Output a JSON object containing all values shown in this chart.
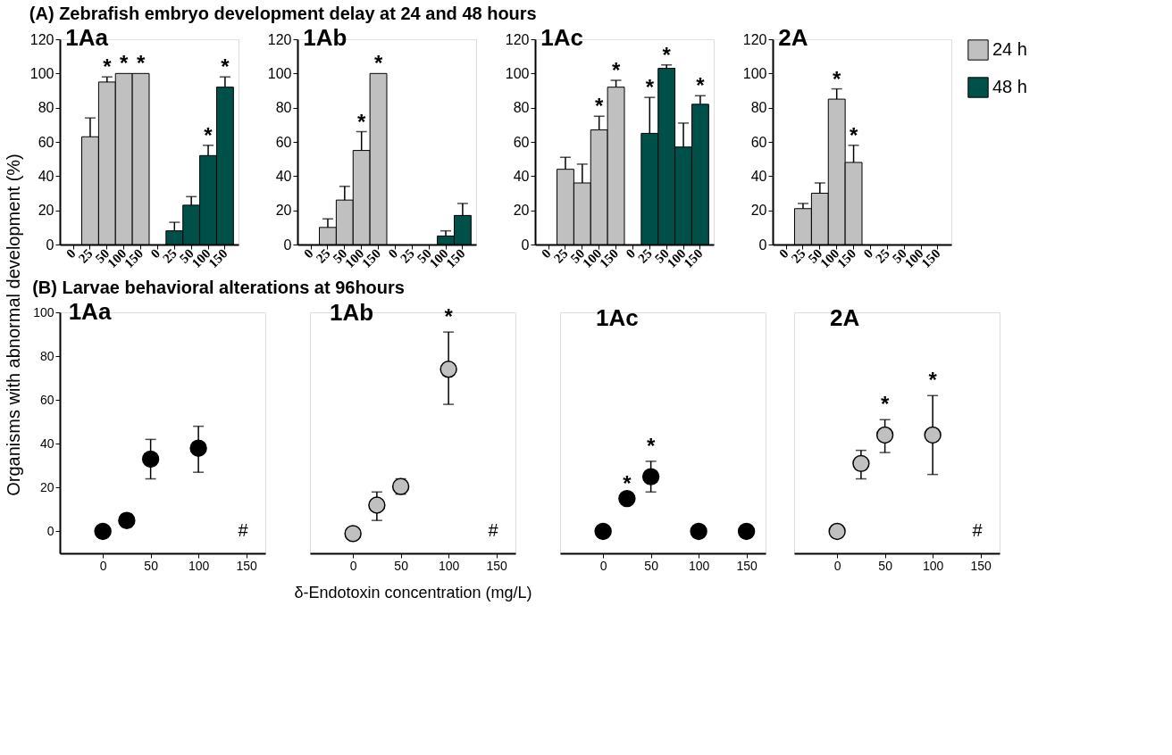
{
  "chart_data": [
    {
      "type": "bar",
      "title": "1Aa",
      "subtitle": "(A) Zebrafish embryo development delay at 24 and 48 hours",
      "ylabel": "Organisms with abnormal development (%)",
      "categories": [
        "0",
        "25",
        "50",
        "100",
        "150",
        "0",
        "25",
        "50",
        "100",
        "150"
      ],
      "ylim": [
        0,
        120
      ],
      "yticks": [
        0,
        20,
        40,
        60,
        80,
        100,
        120
      ],
      "grid": false,
      "legend": false,
      "series": [
        {
          "color": "#c0c0c0",
          "values": [
            0,
            63,
            95,
            100,
            100,
            null,
            null,
            null,
            null,
            null
          ],
          "errors": [
            null,
            [
              63,
              74
            ],
            [
              95,
              98
            ],
            null,
            null,
            null,
            null,
            null,
            null,
            null
          ],
          "value_labels": [
            null,
            null,
            "*",
            "*",
            "*",
            null,
            null,
            null,
            null,
            null
          ]
        },
        {
          "color": "#00504a",
          "values": [
            null,
            null,
            null,
            null,
            null,
            0,
            8,
            23,
            52,
            92
          ],
          "errors": [
            null,
            null,
            null,
            null,
            null,
            null,
            [
              8,
              13
            ],
            [
              23,
              28
            ],
            [
              52,
              58
            ],
            [
              92,
              98
            ]
          ],
          "value_labels": [
            null,
            null,
            null,
            null,
            null,
            null,
            null,
            null,
            "*",
            "*"
          ]
        }
      ]
    },
    {
      "type": "bar",
      "title": "1Ab",
      "categories": [
        "0",
        "25",
        "50",
        "100",
        "150",
        "0",
        "25",
        "50",
        "100",
        "150"
      ],
      "ylim": [
        0,
        120
      ],
      "yticks": [
        0,
        20,
        40,
        60,
        80,
        100,
        120
      ],
      "grid": false,
      "legend": false,
      "series": [
        {
          "color": "#c0c0c0",
          "values": [
            0,
            10,
            26,
            55,
            100,
            null,
            null,
            null,
            null,
            null
          ],
          "errors": [
            null,
            [
              10,
              15
            ],
            [
              26,
              34
            ],
            [
              55,
              66
            ],
            null,
            null,
            null,
            null,
            null,
            null
          ],
          "value_labels": [
            null,
            null,
            null,
            "*",
            "*",
            null,
            null,
            null,
            null,
            null
          ]
        },
        {
          "color": "#00504a",
          "values": [
            null,
            null,
            null,
            null,
            null,
            0,
            0,
            0,
            5,
            17
          ],
          "errors": [
            null,
            null,
            null,
            null,
            null,
            null,
            null,
            null,
            [
              5,
              8
            ],
            [
              17,
              24
            ]
          ],
          "value_labels": [
            null,
            null,
            null,
            null,
            null,
            null,
            null,
            null,
            null,
            null
          ]
        }
      ]
    },
    {
      "type": "bar",
      "title": "1Ac",
      "categories": [
        "0",
        "25",
        "50",
        "100",
        "150",
        "0",
        "25",
        "50",
        "100",
        "150"
      ],
      "ylim": [
        0,
        120
      ],
      "yticks": [
        0,
        20,
        40,
        60,
        80,
        100,
        120
      ],
      "grid": false,
      "legend": false,
      "series": [
        {
          "color": "#c0c0c0",
          "values": [
            0,
            44,
            36,
            67,
            92,
            null,
            null,
            null,
            null,
            null
          ],
          "errors": [
            null,
            [
              44,
              51
            ],
            [
              36,
              47
            ],
            [
              67,
              75
            ],
            [
              92,
              96
            ],
            null,
            null,
            null,
            null,
            null
          ],
          "value_labels": [
            null,
            null,
            null,
            "*",
            "*",
            null,
            null,
            null,
            null,
            null
          ]
        },
        {
          "color": "#00504a",
          "values": [
            null,
            null,
            null,
            null,
            null,
            0,
            65,
            103,
            57,
            82
          ],
          "errors": [
            null,
            null,
            null,
            null,
            null,
            null,
            [
              65,
              86
            ],
            [
              103,
              105
            ],
            [
              57,
              71
            ],
            [
              82,
              87
            ]
          ],
          "value_labels": [
            null,
            null,
            null,
            null,
            null,
            null,
            "*",
            "*",
            null,
            "*"
          ]
        }
      ]
    },
    {
      "type": "bar",
      "title": "2A",
      "categories": [
        "0",
        "25",
        "50",
        "100",
        "150",
        "0",
        "25",
        "50",
        "100",
        "150"
      ],
      "ylim": [
        0,
        120
      ],
      "yticks": [
        0,
        20,
        40,
        60,
        80,
        100,
        120
      ],
      "grid": false,
      "legend": "right",
      "series": [
        {
          "name": "24 h",
          "color": "#c0c0c0",
          "values": [
            0,
            21,
            30,
            85,
            48,
            null,
            null,
            null,
            null,
            null
          ],
          "errors": [
            null,
            [
              21,
              24
            ],
            [
              30,
              36
            ],
            [
              85,
              91
            ],
            [
              48,
              58
            ],
            null,
            null,
            null,
            null,
            null
          ],
          "value_labels": [
            null,
            null,
            null,
            "*",
            "*",
            null,
            null,
            null,
            null,
            null
          ]
        },
        {
          "name": "48 h",
          "color": "#00504a",
          "values": [
            null,
            null,
            null,
            null,
            null,
            0,
            0,
            0,
            0,
            0
          ],
          "errors": [
            null,
            null,
            null,
            null,
            null,
            null,
            null,
            null,
            null,
            null
          ],
          "value_labels": [
            null,
            null,
            null,
            null,
            null,
            null,
            null,
            null,
            null,
            null
          ]
        }
      ]
    },
    {
      "type": "scatter",
      "title": "1Aa",
      "subtitle": "(B) Larvae behavioral alterations at 96hours",
      "annotations": [
        "#"
      ],
      "x": [
        0,
        25,
        50,
        100
      ],
      "xlim": [
        -45,
        170
      ],
      "xticks": [
        0,
        50,
        100,
        150
      ],
      "ylim": [
        -10,
        100
      ],
      "yticks": [
        0,
        20,
        40,
        60,
        80,
        100
      ],
      "grid": false,
      "marker": "circle",
      "series": [
        {
          "color": "#000000",
          "values": [
            0,
            5,
            33,
            38
          ],
          "errors": [
            null,
            [
              2,
              8
            ],
            [
              24,
              42
            ],
            [
              27,
              48
            ]
          ],
          "value_labels": [
            null,
            null,
            null,
            null
          ]
        }
      ]
    },
    {
      "type": "scatter",
      "title": "1Ab",
      "xlabel": "δ-Endotoxin concentration (mg/L)",
      "annotations": [
        "#"
      ],
      "x": [
        0,
        25,
        50,
        100
      ],
      "xlim": [
        -45,
        170
      ],
      "xticks": [
        0,
        50,
        100,
        150
      ],
      "ylim": [
        -10,
        100
      ],
      "yticks": [
        0,
        20,
        40,
        60,
        80,
        100
      ],
      "tick_labels": "x",
      "grid": false,
      "marker": "circle",
      "series": [
        {
          "color": "#c0c0c0",
          "values": [
            -1,
            12,
            20.5,
            74
          ],
          "errors": [
            null,
            [
              5,
              18
            ],
            [
              17,
              24
            ],
            [
              58,
              91
            ]
          ],
          "value_labels": [
            null,
            null,
            null,
            "*"
          ]
        }
      ]
    },
    {
      "type": "scatter",
      "title": "1Ac",
      "x": [
        0,
        25,
        50,
        100,
        150
      ],
      "xlim": [
        -45,
        170
      ],
      "xticks": [
        0,
        50,
        100,
        150
      ],
      "ylim": [
        -10,
        100
      ],
      "yticks": [
        0,
        20,
        40,
        60,
        80,
        100
      ],
      "tick_labels": "x",
      "grid": false,
      "marker": "circle",
      "series": [
        {
          "color": "#000000",
          "values": [
            0,
            15,
            25,
            0,
            0
          ],
          "errors": [
            null,
            null,
            [
              18,
              32
            ],
            null,
            null
          ],
          "value_labels": [
            null,
            "*",
            "*",
            null,
            null
          ]
        }
      ]
    },
    {
      "type": "scatter",
      "title": "2A",
      "annotations": [
        "#"
      ],
      "x": [
        0,
        25,
        50,
        100
      ],
      "xlim": [
        -45,
        170
      ],
      "xticks": [
        0,
        50,
        100,
        150
      ],
      "ylim": [
        -10,
        100
      ],
      "yticks": [
        0,
        20,
        40,
        60,
        80,
        100
      ],
      "tick_labels": "x",
      "grid": false,
      "marker": "circle",
      "series": [
        {
          "color": "#c0c0c0",
          "values": [
            0,
            31,
            44,
            44
          ],
          "errors": [
            null,
            [
              24,
              37
            ],
            [
              36,
              51
            ],
            [
              26,
              62
            ]
          ],
          "value_labels": [
            null,
            null,
            "*",
            "*"
          ]
        }
      ]
    }
  ]
}
